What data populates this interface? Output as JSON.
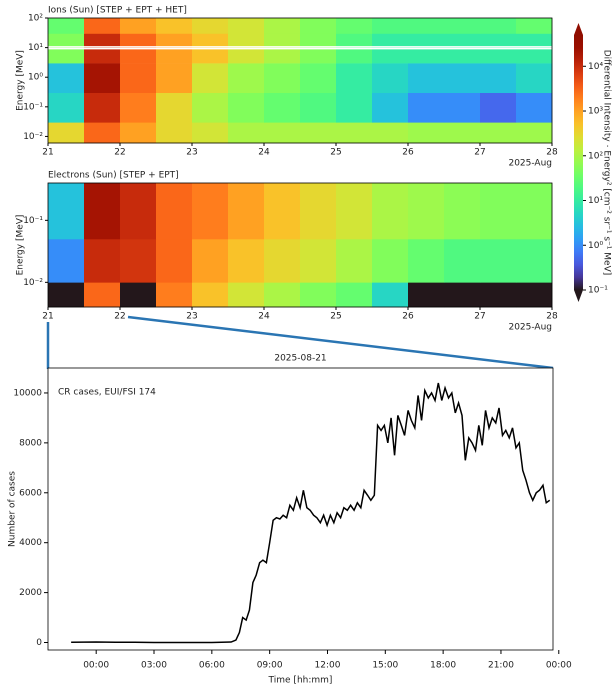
{
  "chart_data": [
    {
      "type": "heatmap",
      "title": "Ions (Sun) [STEP + EPT + HET]",
      "ylabel": "Energy [MeV]",
      "xlabel": "2025-Aug",
      "yscale": "log",
      "x_edges": [
        21,
        21.5,
        22,
        22.5,
        23,
        23.5,
        24,
        24.5,
        25,
        25.5,
        26,
        26.5,
        27,
        27.5,
        28
      ],
      "y_edges": [
        0.006,
        0.03,
        0.3,
        3,
        30,
        100
      ],
      "values": [
        [
          300,
          3000,
          1000,
          300,
          200,
          100,
          100,
          100,
          100,
          100,
          80,
          80,
          80,
          80
        ],
        [
          5,
          10000,
          2000,
          300,
          100,
          50,
          30,
          20,
          10,
          3,
          1,
          1,
          0.5,
          1
        ],
        [
          3,
          20000,
          3000,
          1000,
          200,
          80,
          50,
          30,
          10,
          5,
          3,
          3,
          3,
          5
        ],
        [
          50,
          10000,
          3000,
          1000,
          500,
          200,
          100,
          50,
          20,
          10,
          10,
          10,
          10,
          10
        ],
        [
          30,
          3000,
          1000,
          500,
          300,
          200,
          100,
          50,
          30,
          20,
          20,
          20,
          20,
          30
        ]
      ],
      "xlim": [
        21,
        28
      ],
      "xticks": [
        21,
        22,
        23,
        24,
        25,
        26,
        27,
        28
      ],
      "ylim": [
        0.006,
        100
      ],
      "yticks": [
        {
          "value": 0.01,
          "label": "10⁻²"
        },
        {
          "value": 0.1,
          "label": "10⁻¹"
        },
        {
          "value": 1,
          "label": "10⁰"
        },
        {
          "value": 10,
          "label": "10¹"
        },
        {
          "value": 100,
          "label": "10²"
        }
      ],
      "colorbar": {
        "label": "Differential Intensity · Energy² [cm⁻² sr⁻¹ s⁻¹ MeV]",
        "lim": [
          0.1,
          50000
        ],
        "ticks": [
          {
            "value": 0.1,
            "label": "10⁻¹"
          },
          {
            "value": 1,
            "label": "10⁰"
          },
          {
            "value": 10,
            "label": "10¹"
          },
          {
            "value": 100,
            "label": "10²"
          },
          {
            "value": 1000,
            "label": "10³"
          },
          {
            "value": 10000,
            "label": "10⁴"
          }
        ]
      }
    },
    {
      "type": "heatmap",
      "title": "Electrons (Sun) [STEP + EPT]",
      "ylabel": "Energy [MeV]",
      "xlabel": "2025-Aug",
      "yscale": "log",
      "x_edges": [
        21,
        21.5,
        22,
        22.5,
        23,
        23.5,
        24,
        24.5,
        25,
        25.5,
        26,
        26.5,
        27,
        27.5,
        28
      ],
      "y_edges": [
        0.004,
        0.01,
        0.05,
        0.4
      ],
      "values": [
        [
          0.05,
          3000,
          0.05,
          2000,
          500,
          200,
          100,
          50,
          30,
          5,
          0.1,
          0.1,
          0.1,
          0.1
        ],
        [
          1,
          10000,
          8000,
          3000,
          1000,
          500,
          300,
          200,
          100,
          50,
          30,
          20,
          20,
          20
        ],
        [
          3,
          20000,
          10000,
          3000,
          2000,
          1000,
          500,
          300,
          200,
          100,
          80,
          60,
          50,
          50
        ]
      ],
      "xlim": [
        21,
        28
      ],
      "xticks": [
        21,
        22,
        23,
        24,
        25,
        26,
        27,
        28
      ],
      "ylim": [
        0.004,
        0.4
      ],
      "yticks": [
        {
          "value": 0.01,
          "label": "10⁻²"
        },
        {
          "value": 0.1,
          "label": "10⁻¹"
        }
      ]
    },
    {
      "type": "line",
      "title": "2025-08-21",
      "annotation": "CR cases, EUI/FSI 174",
      "xlabel": "Time [hh:mm]",
      "ylabel": "Number of cases",
      "color": "#000000",
      "x": [
        -1.3,
        0,
        1,
        2,
        3,
        4,
        5,
        6,
        7,
        7.25,
        7.43,
        7.6,
        7.78,
        7.95,
        8.13,
        8.3,
        8.48,
        8.65,
        8.83,
        9.0,
        9.18,
        9.35,
        9.53,
        9.7,
        9.88,
        10.05,
        10.23,
        10.4,
        10.58,
        10.75,
        10.93,
        11.1,
        11.28,
        11.45,
        11.63,
        11.8,
        11.98,
        12.15,
        12.33,
        12.5,
        12.68,
        12.85,
        13.03,
        13.2,
        13.38,
        13.55,
        13.73,
        13.9,
        14.08,
        14.25,
        14.43,
        14.6,
        14.78,
        14.95,
        15.13,
        15.3,
        15.48,
        15.65,
        15.83,
        16.0,
        16.18,
        16.35,
        16.53,
        16.7,
        16.88,
        17.05,
        17.23,
        17.4,
        17.58,
        17.75,
        17.93,
        18.1,
        18.28,
        18.45,
        18.63,
        18.8,
        18.98,
        19.15,
        19.33,
        19.5,
        19.68,
        19.85,
        20.03,
        20.2,
        20.38,
        20.55,
        20.73,
        20.9,
        21.08,
        21.25,
        21.43,
        21.6,
        21.78,
        21.95,
        22.13,
        22.3,
        22.48,
        22.65,
        22.83,
        23.0,
        23.18,
        23.35,
        23.53
      ],
      "values": [
        10,
        20,
        10,
        10,
        0,
        0,
        0,
        0,
        20,
        100,
        400,
        1000,
        900,
        1300,
        2400,
        2700,
        3200,
        3300,
        3200,
        4000,
        4900,
        5000,
        4950,
        5100,
        5000,
        5500,
        5300,
        5800,
        5400,
        6100,
        5400,
        5300,
        5100,
        5000,
        4800,
        5100,
        4700,
        5100,
        4800,
        5200,
        5000,
        5400,
        5300,
        5500,
        5300,
        5600,
        5400,
        6100,
        5900,
        5700,
        5900,
        8700,
        8500,
        8700,
        8000,
        9000,
        7500,
        9100,
        8700,
        8300,
        9300,
        8900,
        8600,
        9900,
        8900,
        10100,
        9800,
        10000,
        9700,
        10400,
        9700,
        10200,
        9800,
        10000,
        9200,
        9600,
        9100,
        7300,
        8200,
        8000,
        7700,
        8700,
        7900,
        9300,
        8600,
        9000,
        8800,
        9400,
        8300,
        8500,
        8200,
        8600,
        7800,
        8000,
        6900,
        6500,
        6000,
        5700,
        6000,
        6100,
        6300,
        5600,
        5700
      ],
      "xlim": [
        -2.5,
        23.7
      ],
      "xticks": [
        {
          "value": 0,
          "label": "00:00"
        },
        {
          "value": 3,
          "label": "03:00"
        },
        {
          "value": 6,
          "label": "06:00"
        },
        {
          "value": 9,
          "label": "09:00"
        },
        {
          "value": 12,
          "label": "12:00"
        },
        {
          "value": 15,
          "label": "15:00"
        },
        {
          "value": 18,
          "label": "18:00"
        },
        {
          "value": 21,
          "label": "21:00"
        },
        {
          "value": 24,
          "label": "00:00"
        }
      ],
      "ylim": [
        -300,
        11000
      ],
      "yticks": [
        0,
        2000,
        4000,
        6000,
        8000,
        10000
      ]
    }
  ]
}
